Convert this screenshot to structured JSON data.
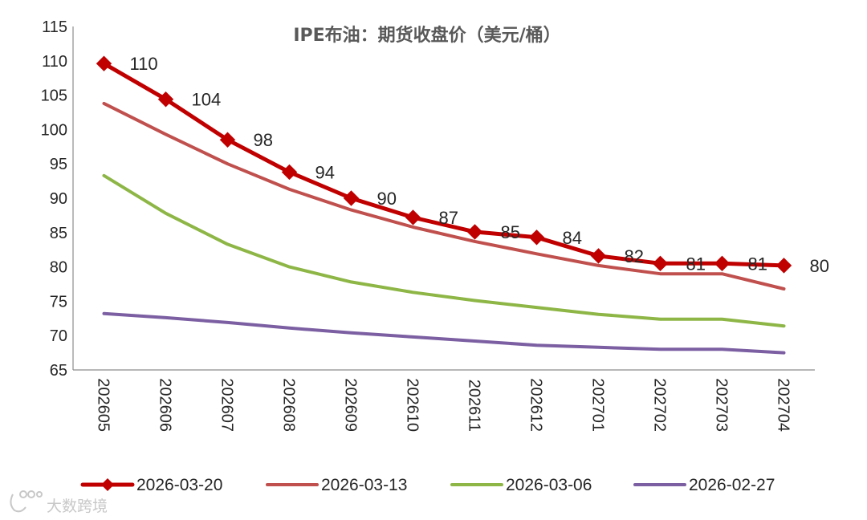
{
  "chart_data": {
    "type": "line",
    "title": "IPE布油：期货收盘价（美元/桶）",
    "xlabel": "",
    "ylabel": "",
    "ylim": [
      65,
      115
    ],
    "yticks": [
      65,
      70,
      75,
      80,
      85,
      90,
      95,
      100,
      105,
      110,
      115
    ],
    "grid": false,
    "legend_position": "bottom",
    "categories": [
      "202605",
      "202606",
      "202607",
      "202608",
      "202609",
      "202610",
      "202611",
      "202612",
      "202701",
      "202702",
      "202703",
      "202704"
    ],
    "series": [
      {
        "name": "2026-03-20",
        "color": "#C00000",
        "marker": "diamond",
        "values": [
          109.6,
          104.4,
          98.5,
          93.8,
          90.0,
          87.2,
          85.1,
          84.3,
          81.6,
          80.5,
          80.5,
          80.2
        ],
        "labels": [
          "110",
          "104",
          "98",
          "94",
          "90",
          "87",
          "85",
          "84",
          "82",
          "81",
          "81",
          "80"
        ]
      },
      {
        "name": "2026-03-13",
        "color": "#C0504D",
        "marker": "none",
        "values": [
          103.8,
          99.3,
          95.0,
          91.3,
          88.3,
          85.8,
          83.7,
          81.9,
          80.2,
          79.0,
          79.0,
          76.8
        ]
      },
      {
        "name": "2026-03-06",
        "color": "#8DB646",
        "marker": "none",
        "values": [
          93.3,
          87.8,
          83.3,
          80.0,
          77.8,
          76.3,
          75.1,
          74.1,
          73.1,
          72.4,
          72.4,
          71.4
        ]
      },
      {
        "name": "2026-02-27",
        "color": "#7B5FA2",
        "marker": "none",
        "values": [
          73.2,
          72.6,
          71.9,
          71.1,
          70.4,
          69.8,
          69.2,
          68.6,
          68.3,
          68.0,
          68.0,
          67.5
        ]
      }
    ]
  },
  "watermark": {
    "text": "大数跨境",
    "icon": "brand-logo-icon"
  }
}
